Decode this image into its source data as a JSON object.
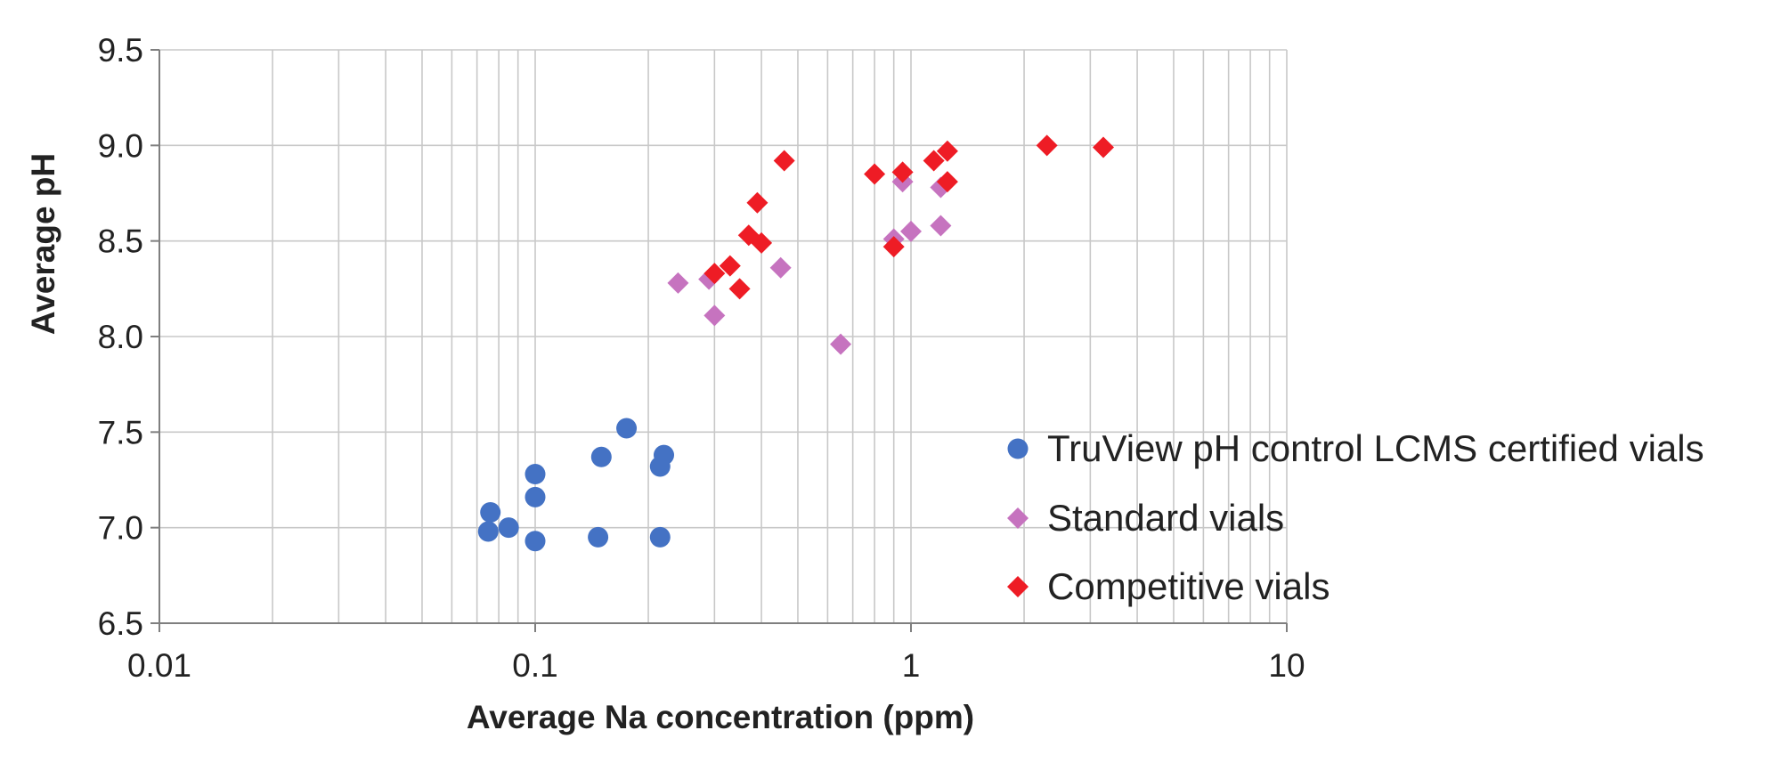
{
  "chart_data": {
    "type": "scatter",
    "title": "",
    "xlabel": "Average Na concentration (ppm)",
    "ylabel": "Average pH",
    "xscale": "log",
    "xlim": [
      0.01,
      10
    ],
    "ylim": [
      6.5,
      9.5
    ],
    "x_ticks": [
      0.01,
      0.1,
      1,
      10
    ],
    "x_tick_labels": [
      "0.01",
      "0.1",
      "1",
      "10"
    ],
    "y_ticks": [
      6.5,
      7.0,
      7.5,
      8.0,
      8.5,
      9.0,
      9.5
    ],
    "y_tick_labels": [
      "6.5",
      "7.0",
      "7.5",
      "8.0",
      "8.5",
      "9.0",
      "9.5"
    ],
    "grid": true,
    "legend_position": "bottom-right",
    "series": [
      {
        "name": "TruView pH control LCMS certified vials",
        "marker": "circle",
        "color": "#4472C4",
        "points": [
          {
            "x": 0.076,
            "y": 7.08
          },
          {
            "x": 0.075,
            "y": 6.98
          },
          {
            "x": 0.085,
            "y": 7.0
          },
          {
            "x": 0.1,
            "y": 7.28
          },
          {
            "x": 0.1,
            "y": 7.16
          },
          {
            "x": 0.1,
            "y": 6.93
          },
          {
            "x": 0.15,
            "y": 7.37
          },
          {
            "x": 0.147,
            "y": 6.95
          },
          {
            "x": 0.175,
            "y": 7.52
          },
          {
            "x": 0.22,
            "y": 7.38
          },
          {
            "x": 0.215,
            "y": 7.32
          },
          {
            "x": 0.215,
            "y": 6.95
          }
        ]
      },
      {
        "name": "Standard vials",
        "marker": "diamond",
        "color": "#C673BF",
        "points": [
          {
            "x": 0.24,
            "y": 8.28
          },
          {
            "x": 0.29,
            "y": 8.3
          },
          {
            "x": 0.3,
            "y": 8.11
          },
          {
            "x": 0.45,
            "y": 8.36
          },
          {
            "x": 0.65,
            "y": 7.96
          },
          {
            "x": 0.9,
            "y": 8.51
          },
          {
            "x": 0.95,
            "y": 8.81
          },
          {
            "x": 1.0,
            "y": 8.55
          },
          {
            "x": 1.2,
            "y": 8.78
          },
          {
            "x": 1.2,
            "y": 8.58
          }
        ]
      },
      {
        "name": "Competitive vials",
        "marker": "diamond",
        "color": "#EE1C25",
        "points": [
          {
            "x": 0.3,
            "y": 8.33
          },
          {
            "x": 0.33,
            "y": 8.37
          },
          {
            "x": 0.35,
            "y": 8.25
          },
          {
            "x": 0.37,
            "y": 8.53
          },
          {
            "x": 0.4,
            "y": 8.49
          },
          {
            "x": 0.39,
            "y": 8.7
          },
          {
            "x": 0.46,
            "y": 8.92
          },
          {
            "x": 0.8,
            "y": 8.85
          },
          {
            "x": 0.9,
            "y": 8.47
          },
          {
            "x": 0.95,
            "y": 8.86
          },
          {
            "x": 1.15,
            "y": 8.92
          },
          {
            "x": 1.25,
            "y": 8.97
          },
          {
            "x": 1.25,
            "y": 8.81
          },
          {
            "x": 2.3,
            "y": 9.0
          },
          {
            "x": 3.25,
            "y": 8.99
          }
        ]
      }
    ]
  }
}
